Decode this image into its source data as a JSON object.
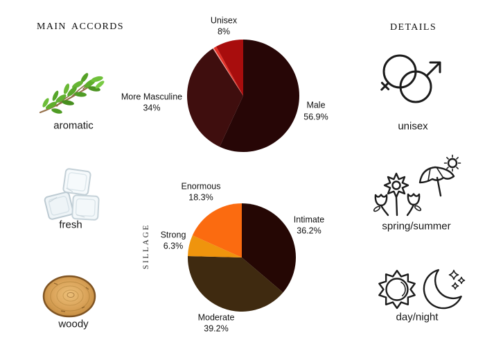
{
  "page": {
    "background_color": "#ffffff"
  },
  "left_panel": {
    "title": "MAIN ACCORDS",
    "accords": [
      {
        "label": "aromatic",
        "icon": "herb-sprig-image"
      },
      {
        "label": "fresh",
        "icon": "ice-cubes-image"
      },
      {
        "label": "woody",
        "icon": "wood-slice-image"
      }
    ]
  },
  "right_panel": {
    "title": "DETAILS",
    "details": [
      {
        "label": "unisex",
        "icon": "gender-unisex-icon"
      },
      {
        "label": "spring/summer",
        "icon": "spring-summer-icon"
      },
      {
        "label": "day/night",
        "icon": "day-night-icon"
      }
    ]
  },
  "chart_data": [
    {
      "type": "pie",
      "name": "gender-votes",
      "start_angle": "top",
      "direction": "clockwise",
      "legend_position": "outside-labels",
      "slices": [
        {
          "label": "Male",
          "value": 56.9,
          "pct": "56.9%",
          "color": "#270606"
        },
        {
          "label": "More Masculine",
          "value": 34,
          "pct": "34%",
          "color": "#3f0e0e"
        },
        {
          "label": "",
          "value": 0.3,
          "pct": "",
          "color": "#f2a39e"
        },
        {
          "label": "",
          "value": 0.8,
          "pct": "",
          "color": "#e33127"
        },
        {
          "label": "Unisex",
          "value": 8,
          "pct": "8%",
          "color": "#a80d0d"
        }
      ]
    },
    {
      "type": "pie",
      "name": "sillage",
      "axis_label": "SILLAGE",
      "start_angle": "top",
      "direction": "clockwise",
      "legend_position": "outside-labels",
      "slices": [
        {
          "label": "Intimate",
          "value": 36.2,
          "pct": "36.2%",
          "color": "#250704"
        },
        {
          "label": "Moderate",
          "value": 39.2,
          "pct": "39.2%",
          "color": "#3f2a10"
        },
        {
          "label": "Strong",
          "value": 6.3,
          "pct": "6.3%",
          "color": "#ef940d"
        },
        {
          "label": "Enormous",
          "value": 18.3,
          "pct": "18.3%",
          "color": "#fb6b10"
        }
      ]
    }
  ]
}
